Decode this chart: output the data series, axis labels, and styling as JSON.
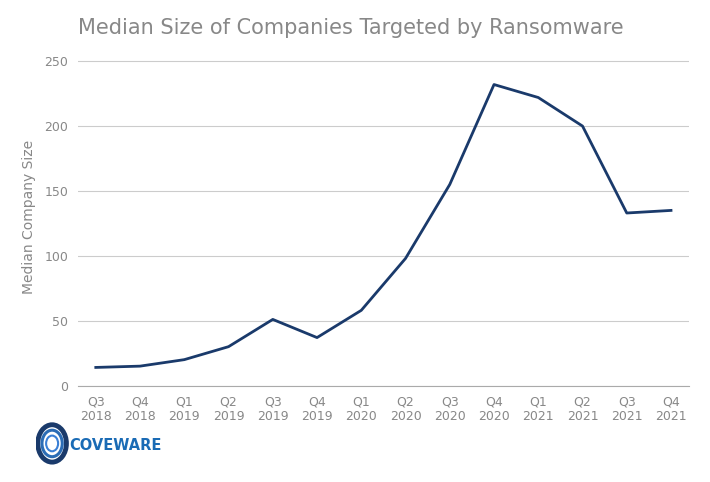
{
  "title": "Median Size of Companies Targeted by Ransomware",
  "ylabel": "Median Company Size",
  "x_labels": [
    "Q3\n2018",
    "Q4\n2018",
    "Q1\n2019",
    "Q2\n2019",
    "Q3\n2019",
    "Q4\n2019",
    "Q1\n2020",
    "Q2\n2020",
    "Q3\n2020",
    "Q4\n2020",
    "Q1\n2021",
    "Q2\n2021",
    "Q3\n2021",
    "Q4\n2021"
  ],
  "y_values": [
    14,
    15,
    20,
    30,
    51,
    37,
    58,
    98,
    155,
    232,
    222,
    200,
    133,
    135
  ],
  "line_color": "#1a3a6b",
  "line_width": 2.0,
  "ylim": [
    0,
    260
  ],
  "yticks": [
    0,
    50,
    100,
    150,
    200,
    250
  ],
  "grid_color": "#cccccc",
  "background_color": "#ffffff",
  "title_fontsize": 15,
  "title_color": "#888888",
  "axis_label_fontsize": 10,
  "tick_fontsize": 9,
  "tick_color": "#888888",
  "coveware_text": "COVEWARE",
  "coveware_text_color": "#1a6bb5",
  "logo_outer_color": "#1a3a6b",
  "logo_mid_color": "#2a6bb5",
  "logo_inner_color": "#ffffff"
}
